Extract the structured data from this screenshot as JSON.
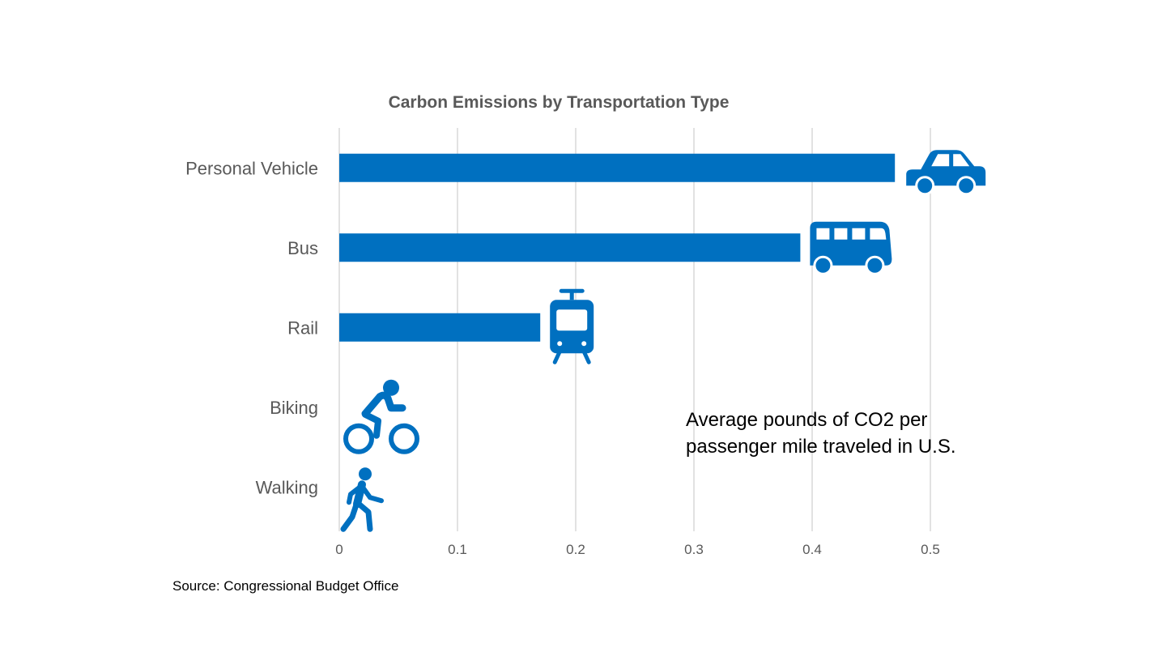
{
  "chart_data": {
    "type": "bar",
    "orientation": "horizontal",
    "title": "Carbon Emissions by Transportation Type",
    "categories": [
      "Personal Vehicle",
      "Bus",
      "Rail",
      "Biking",
      "Walking"
    ],
    "values": [
      0.47,
      0.39,
      0.17,
      0,
      0
    ],
    "icons": [
      "car-icon",
      "bus-icon",
      "tram-icon",
      "bicycle-icon",
      "walking-icon"
    ],
    "xlim": [
      0,
      0.5
    ],
    "x_ticks": [
      "0",
      "0.1",
      "0.2",
      "0.3",
      "0.4",
      "0.5"
    ],
    "grid": true,
    "annotation": [
      "Average pounds of CO2 per",
      "passenger mile traveled in U.S."
    ],
    "source": "Source: Congressional Budget Office",
    "bar_color": "#0070C0"
  }
}
